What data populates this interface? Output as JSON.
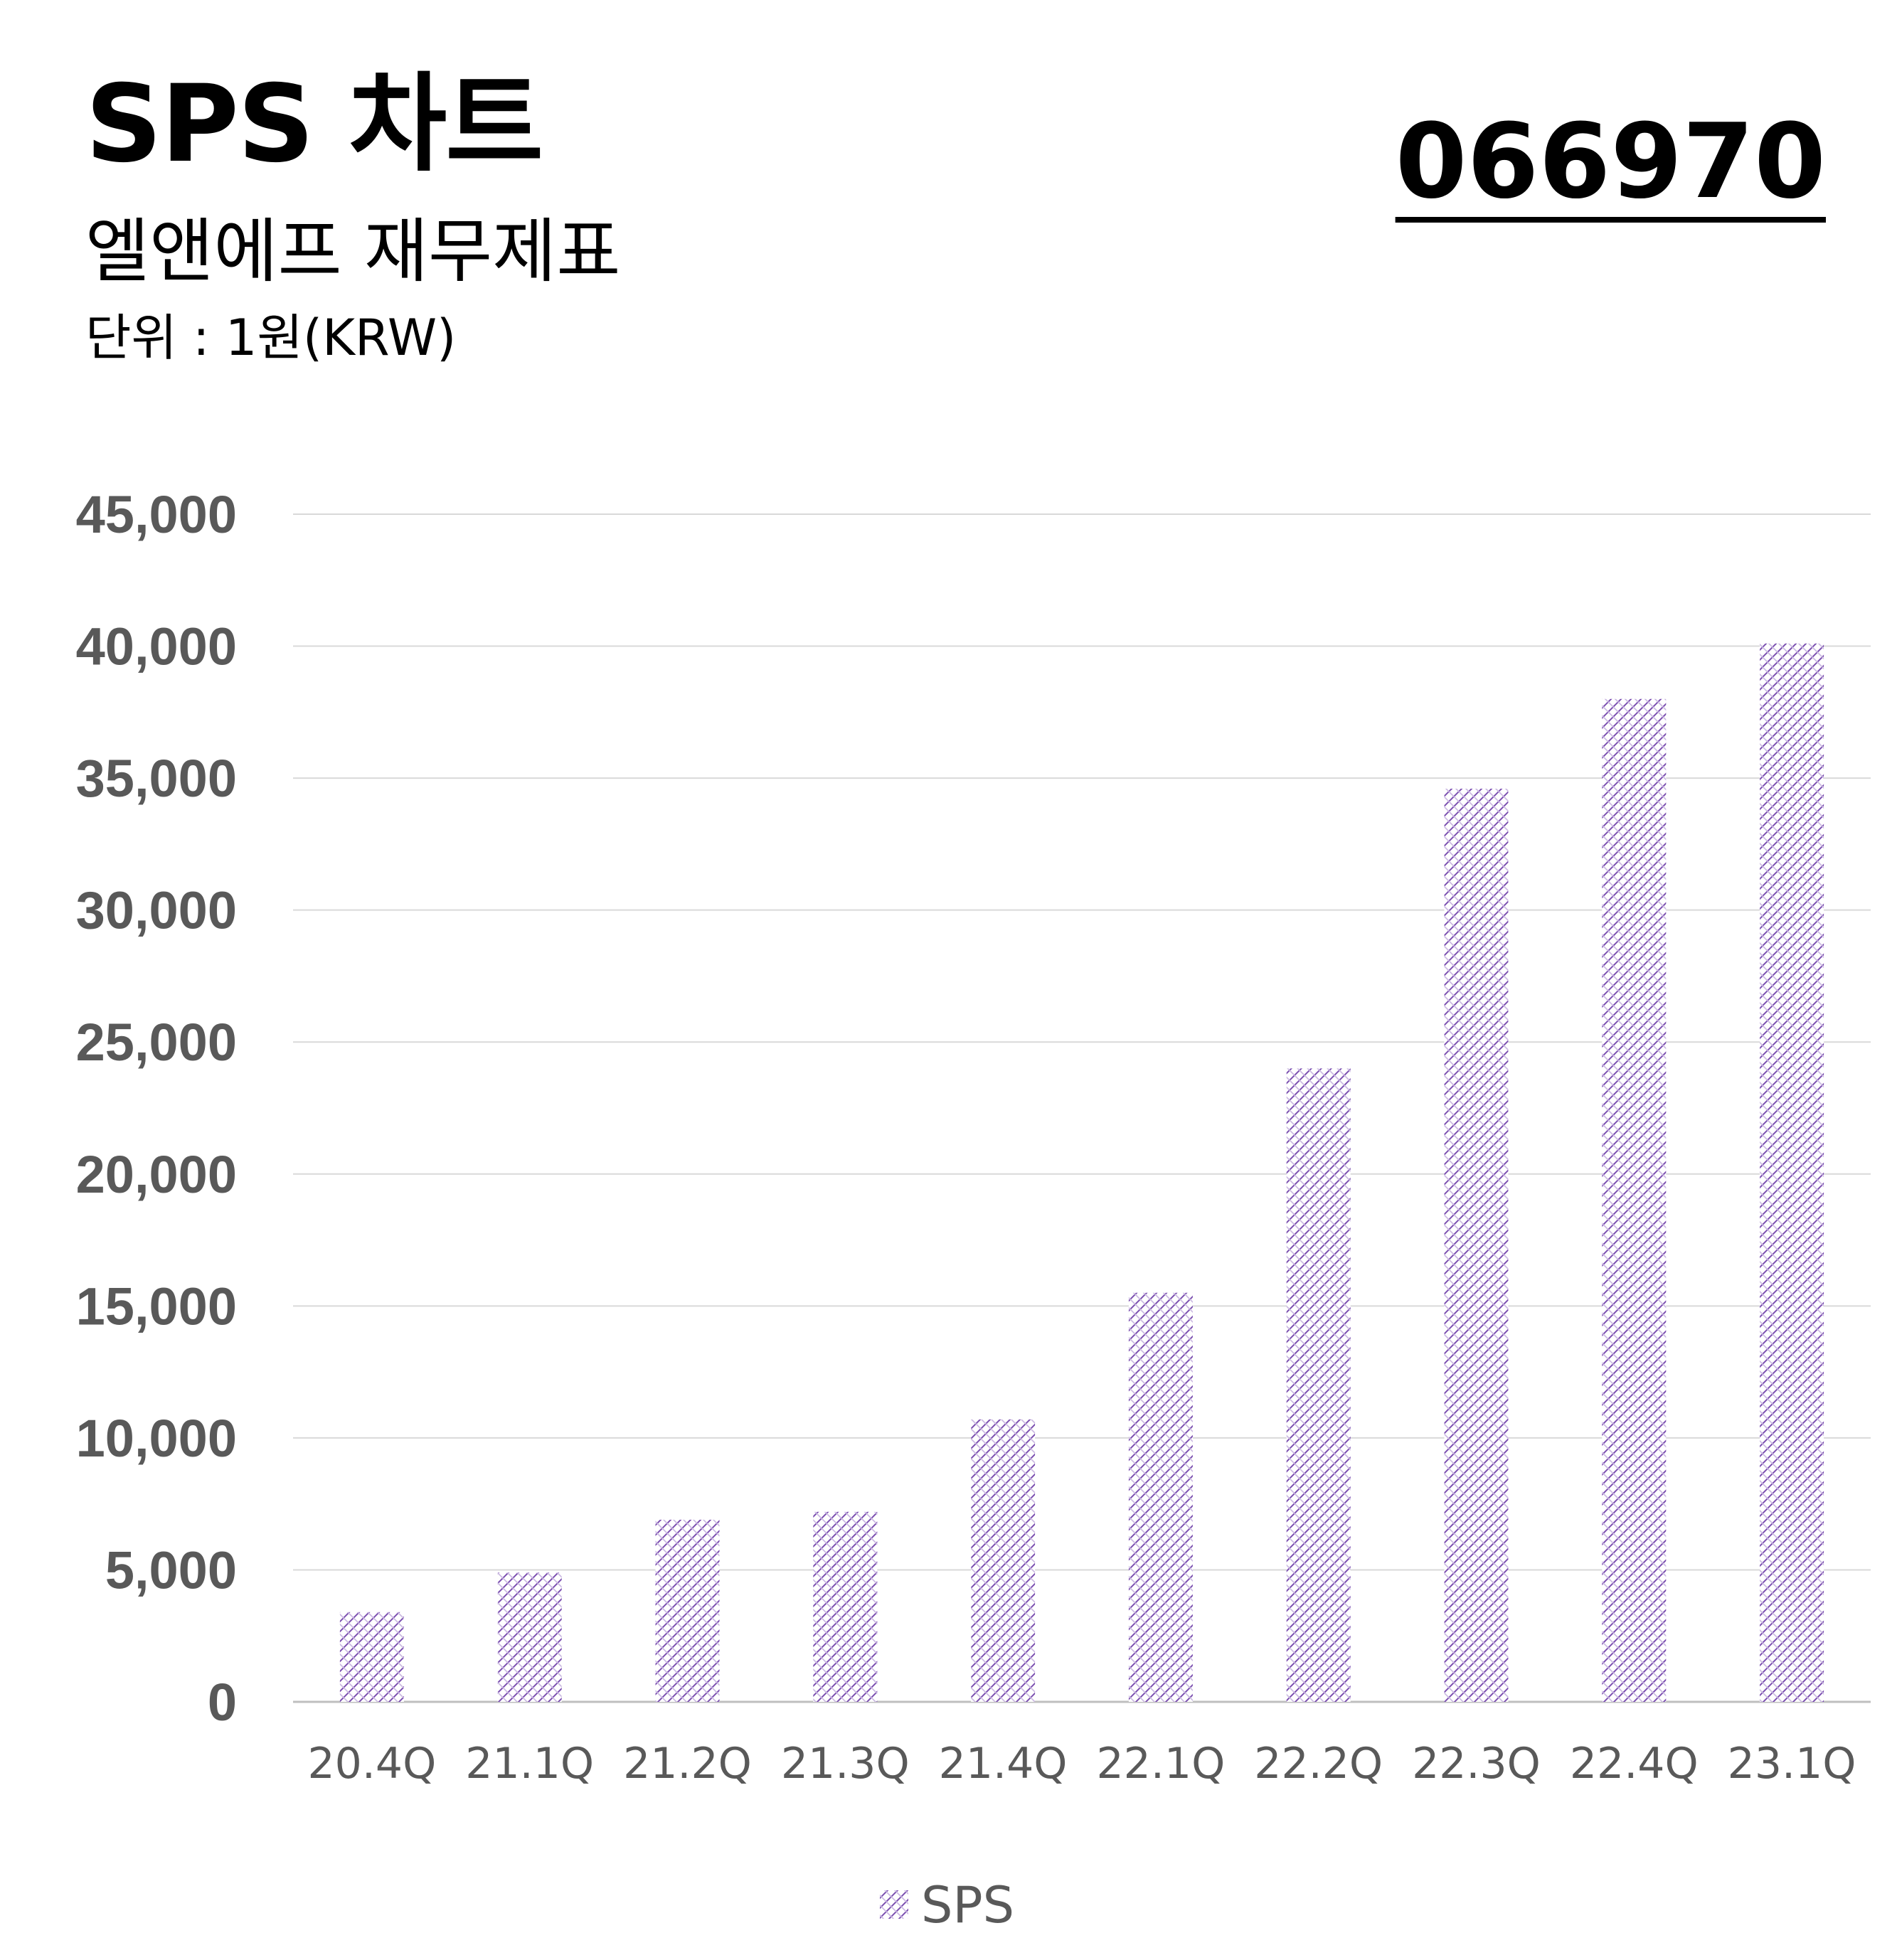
{
  "header": {
    "title": "SPS 차트",
    "subtitle": "엘앤에프 재무제표",
    "unit": "단위 : 1원(KRW)",
    "ticker": "066970"
  },
  "colors": {
    "bar_pattern": "#7b4fb0",
    "grid": "#d9d9d9",
    "axis_text": "#595959"
  },
  "chart_data": {
    "type": "bar",
    "categories": [
      "20.4Q",
      "21.1Q",
      "21.2Q",
      "21.3Q",
      "21.4Q",
      "22.1Q",
      "22.2Q",
      "22.3Q",
      "22.4Q",
      "23.1Q"
    ],
    "series": [
      {
        "name": "SPS",
        "values": [
          3400,
          4900,
          6900,
          7200,
          10700,
          15500,
          24000,
          34600,
          38000,
          40100
        ]
      }
    ],
    "yticks": [
      "0",
      "5,000",
      "10,000",
      "15,000",
      "20,000",
      "25,000",
      "30,000",
      "35,000",
      "40,000",
      "45,000"
    ],
    "ylim": [
      0,
      45000
    ],
    "grid": true,
    "legend": "bottom"
  }
}
